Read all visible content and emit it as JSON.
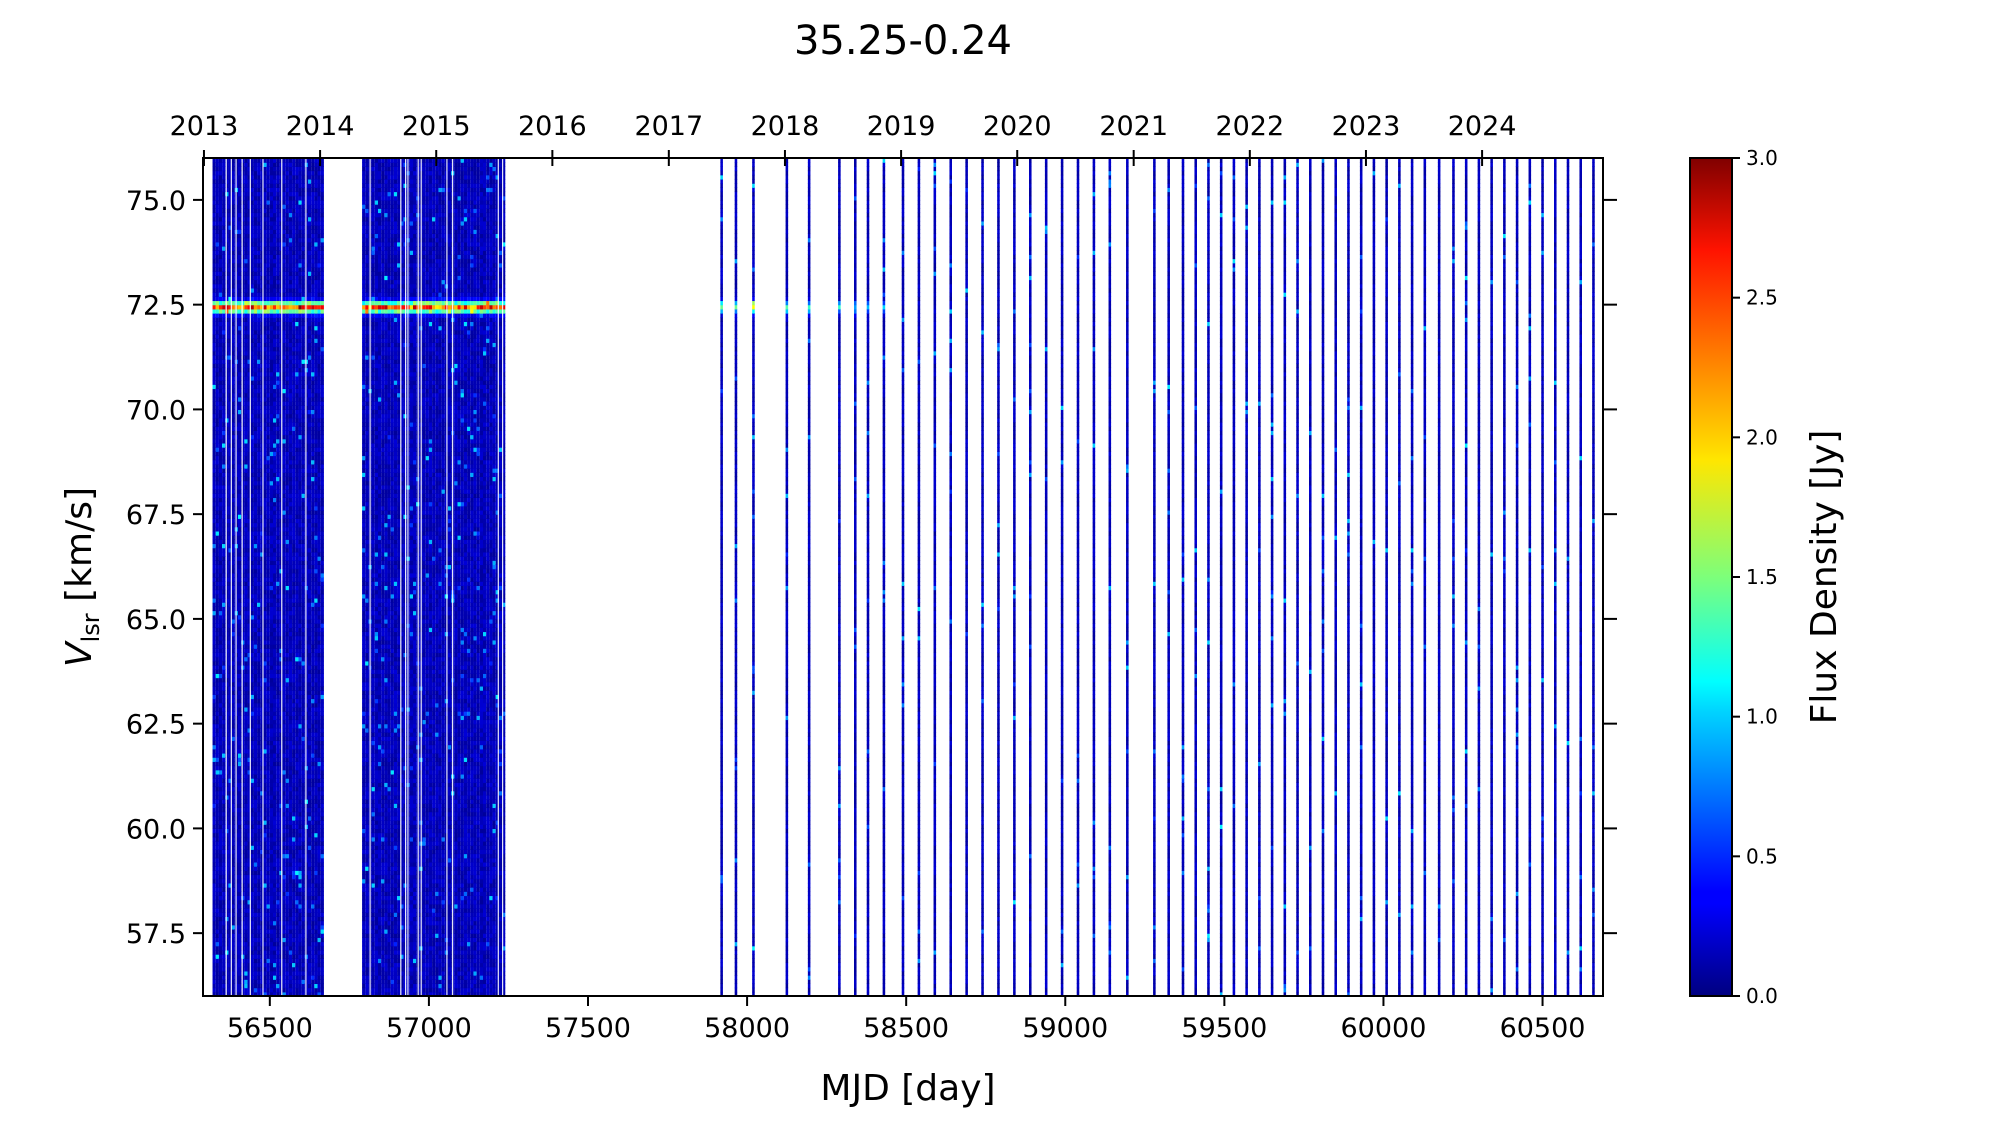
{
  "chart_data": {
    "type": "heatmap",
    "title": "35.25-0.24",
    "xlabel": "MJD [day]",
    "ylabel_main": "V",
    "ylabel_sub": "lsr",
    "ylabel_unit": " [km/s]",
    "xlim": [
      56290,
      60690
    ],
    "ylim": [
      56.0,
      76.0
    ],
    "x_ticks": [
      56500,
      57000,
      57500,
      58000,
      58500,
      59000,
      59500,
      60000,
      60500
    ],
    "y_ticks": [
      57.5,
      60.0,
      62.5,
      65.0,
      67.5,
      70.0,
      72.5,
      75.0
    ],
    "top_axis_ticks": [
      {
        "label": "2013",
        "mjd": 56293
      },
      {
        "label": "2014",
        "mjd": 56658
      },
      {
        "label": "2015",
        "mjd": 57023
      },
      {
        "label": "2016",
        "mjd": 57388
      },
      {
        "label": "2017",
        "mjd": 57754
      },
      {
        "label": "2018",
        "mjd": 58119
      },
      {
        "label": "2019",
        "mjd": 58484
      },
      {
        "label": "2020",
        "mjd": 58849
      },
      {
        "label": "2021",
        "mjd": 59215
      },
      {
        "label": "2022",
        "mjd": 59580
      },
      {
        "label": "2023",
        "mjd": 59945
      },
      {
        "label": "2024",
        "mjd": 60310
      }
    ],
    "colorbar": {
      "label": "Flux Density [Jy]",
      "range": [
        0.0,
        3.0
      ],
      "ticks": [
        0.0,
        0.5,
        1.0,
        1.5,
        2.0,
        2.5,
        3.0
      ],
      "colormap": "jet"
    },
    "dense_segments": [
      {
        "start": 56320,
        "end": 56667
      },
      {
        "start": 56790,
        "end": 57240
      }
    ],
    "sparse_observation_mjd": [
      57920,
      57965,
      58020,
      58125,
      58195,
      58290,
      58340,
      58380,
      58430,
      58490,
      58540,
      58590,
      58640,
      58690,
      58740,
      58790,
      58840,
      58890,
      58940,
      58990,
      59040,
      59090,
      59140,
      59195,
      59280,
      59325,
      59370,
      59410,
      59450,
      59490,
      59530,
      59570,
      59610,
      59650,
      59690,
      59730,
      59770,
      59810,
      59850,
      59890,
      59930,
      59970,
      60010,
      60050,
      60090,
      60130,
      60175,
      60220,
      60260,
      60300,
      60340,
      60380,
      60420,
      60460,
      60500,
      60540,
      60580,
      60620,
      60660
    ],
    "maser_feature": {
      "vlsr": 72.45,
      "peak_flux": 2.4,
      "active_mjd_range": [
        56320,
        58450
      ]
    },
    "background_flux": 0.2
  }
}
